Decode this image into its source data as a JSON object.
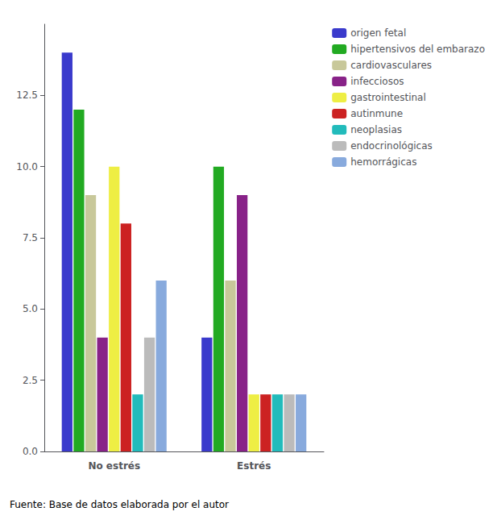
{
  "chart_data": {
    "type": "bar",
    "categories": [
      "No estrés",
      "Estrés"
    ],
    "series": [
      {
        "name": "origen fetal",
        "color": "#3a3acc",
        "values": [
          14,
          4
        ]
      },
      {
        "name": "hipertensivos del embarazo",
        "color": "#22aa22",
        "values": [
          12,
          10
        ]
      },
      {
        "name": "cardiovasculares",
        "color": "#c8c89a",
        "values": [
          9,
          6
        ]
      },
      {
        "name": "infecciosos",
        "color": "#882288",
        "values": [
          4,
          9
        ]
      },
      {
        "name": "gastrointestinal",
        "color": "#eeee44",
        "values": [
          10,
          2
        ]
      },
      {
        "name": "autinmune",
        "color": "#cc2222",
        "values": [
          8,
          2
        ]
      },
      {
        "name": "neoplasias",
        "color": "#22bbbb",
        "values": [
          2,
          2
        ]
      },
      {
        "name": "endocrinológicas",
        "color": "#bbbbbb",
        "values": [
          4,
          2
        ]
      },
      {
        "name": "hemorrágicas",
        "color": "#88aadd",
        "values": [
          6,
          2
        ]
      }
    ],
    "ylim": [
      0,
      15
    ],
    "yticks": [
      {
        "value": 0,
        "label": "0.0"
      },
      2.5,
      {
        "value": 5,
        "label": "5.0"
      },
      7.5,
      {
        "value": 10,
        "label": "10.0"
      },
      12.5
    ],
    "grid": false,
    "legend": "right",
    "annotations": [
      "Fuente: Base de datos elaborada por el autor"
    ]
  }
}
